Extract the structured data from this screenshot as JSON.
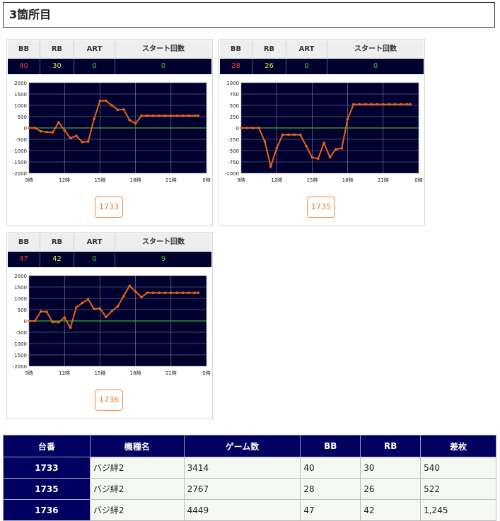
{
  "title": "3箇所目",
  "columns": {
    "bb": "BB",
    "rb": "RB",
    "art": "ART",
    "start": "スタート回数"
  },
  "colors": {
    "bb": "#ff3b3b",
    "rb": "#e9e24a",
    "art": "#39d339",
    "line": "#e8621a",
    "zero": "#2fb52f",
    "bg": "#00002e"
  },
  "cards": [
    {
      "bb": "40",
      "rb": "30",
      "art": "0",
      "start": "0",
      "machine": "1733"
    },
    {
      "bb": "28",
      "rb": "26",
      "art": "0",
      "start": "0",
      "machine": "1735"
    },
    {
      "bb": "47",
      "rb": "42",
      "art": "0",
      "start": "9",
      "machine": "1736"
    }
  ],
  "chart_data": [
    {
      "type": "line",
      "x_ticks": [
        "9時",
        "12時",
        "15時",
        "18時",
        "21時",
        "0時"
      ],
      "y_ticks": [
        "2000",
        "1500",
        "1000",
        "500",
        "0",
        "-500",
        "-1000",
        "-1500",
        "-2000"
      ],
      "ylim": [
        -2000,
        2000
      ],
      "xlim": [
        9,
        24
      ],
      "x": [
        9.0,
        9.5,
        10.0,
        10.5,
        11.0,
        11.5,
        12.0,
        12.5,
        13.0,
        13.5,
        14.0,
        14.5,
        15.0,
        15.5,
        16.0,
        16.5,
        17.0,
        17.5,
        18.0,
        18.5,
        19.0,
        19.5,
        20.0,
        20.5,
        21.0,
        21.5,
        22.0,
        22.5,
        23.0,
        23.3
      ],
      "values": [
        0,
        0,
        -150,
        -180,
        -200,
        250,
        -100,
        -450,
        -350,
        -620,
        -600,
        400,
        1200,
        1200,
        1000,
        800,
        820,
        350,
        200,
        540,
        540,
        540,
        540,
        540,
        540,
        540,
        540,
        540,
        540,
        540
      ]
    },
    {
      "type": "line",
      "x_ticks": [
        "9時",
        "12時",
        "15時",
        "18時",
        "21時",
        "0時"
      ],
      "y_ticks": [
        "1000",
        "750",
        "500",
        "250",
        "0",
        "-250",
        "-500",
        "-750",
        "-1000"
      ],
      "ylim": [
        -1000,
        1000
      ],
      "xlim": [
        9,
        24
      ],
      "x": [
        9.0,
        9.5,
        10.0,
        10.5,
        11.0,
        11.5,
        12.0,
        12.5,
        13.0,
        13.5,
        14.0,
        14.5,
        15.0,
        15.5,
        16.0,
        16.5,
        17.0,
        17.5,
        18.0,
        18.5,
        19.0,
        19.5,
        20.0,
        20.5,
        21.0,
        21.5,
        22.0,
        22.5,
        23.0,
        23.3
      ],
      "values": [
        0,
        0,
        0,
        0,
        -300,
        -850,
        -450,
        -150,
        -150,
        -150,
        -150,
        -400,
        -650,
        -680,
        -330,
        -650,
        -470,
        -450,
        200,
        522,
        522,
        522,
        522,
        522,
        522,
        522,
        522,
        522,
        522,
        522
      ]
    },
    {
      "type": "line",
      "x_ticks": [
        "9時",
        "12時",
        "15時",
        "18時",
        "21時",
        "0時"
      ],
      "y_ticks": [
        "2000",
        "1500",
        "1000",
        "500",
        "0",
        "-500",
        "-1000",
        "-1500",
        "-2000"
      ],
      "ylim": [
        -2000,
        2000
      ],
      "xlim": [
        9,
        24
      ],
      "x": [
        9.0,
        9.5,
        10.0,
        10.5,
        11.0,
        11.5,
        12.0,
        12.5,
        13.0,
        13.5,
        14.0,
        14.5,
        15.0,
        15.5,
        16.0,
        16.5,
        17.0,
        17.5,
        18.0,
        18.5,
        19.0,
        19.5,
        20.0,
        20.5,
        21.0,
        21.5,
        22.0,
        22.5,
        23.0,
        23.3
      ],
      "values": [
        0,
        0,
        420,
        400,
        -50,
        -60,
        150,
        -300,
        600,
        800,
        950,
        530,
        550,
        180,
        430,
        650,
        1100,
        1550,
        1300,
        1050,
        1245,
        1245,
        1245,
        1245,
        1245,
        1245,
        1245,
        1245,
        1245,
        1245
      ]
    }
  ],
  "table": {
    "headers": [
      "台番",
      "機種名",
      "ゲーム数",
      "BB",
      "RB",
      "差枚"
    ],
    "rows": [
      [
        "1733",
        "バジ絆2",
        "3414",
        "40",
        "30",
        "540"
      ],
      [
        "1735",
        "バジ絆2",
        "2767",
        "28",
        "26",
        "522"
      ],
      [
        "1736",
        "バジ絆2",
        "4449",
        "47",
        "42",
        "1,245"
      ]
    ]
  }
}
